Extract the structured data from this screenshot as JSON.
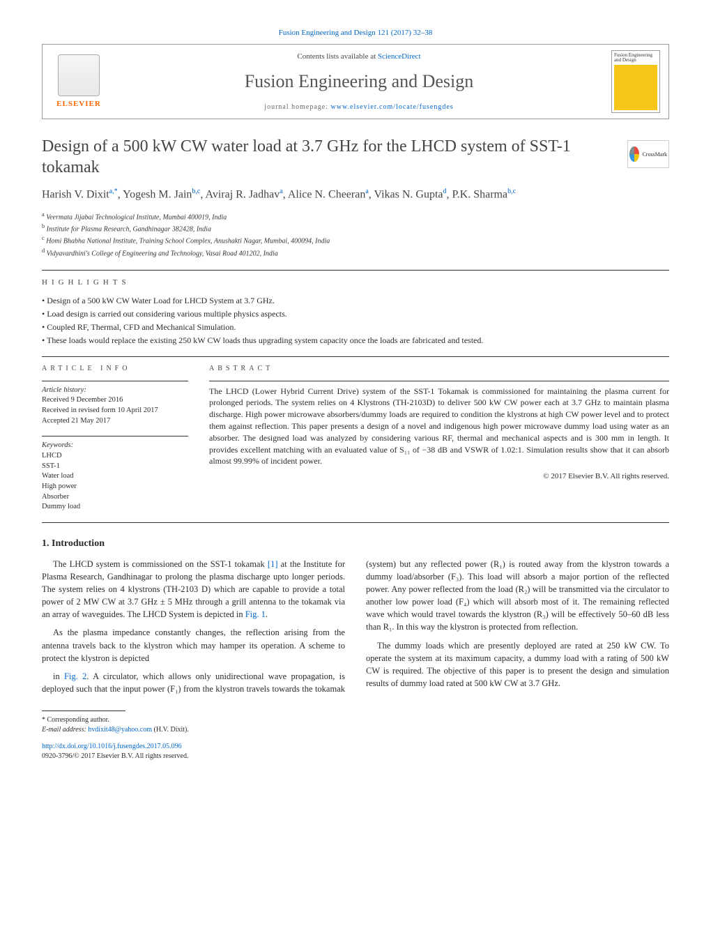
{
  "journal_header": {
    "top_link_prefix": "Fusion Engineering and Design 121 (2017) 32–38",
    "contents_text": "Contents lists available at ",
    "contents_link": "ScienceDirect",
    "journal_name": "Fusion Engineering and Design",
    "homepage_prefix": "journal homepage: ",
    "homepage_link": "www.elsevier.com/locate/fusengdes",
    "publisher": "ELSEVIER",
    "cover_title": "Fusion Engineering and Design"
  },
  "crossmark_label": "CrossMark",
  "article": {
    "title": "Design of a 500 kW CW water load at 3.7 GHz for the LHCD system of SST-1 tokamak",
    "authors_html": "Harish V. Dixit<sup>a,*</sup>, Yogesh M. Jain<sup>b,c</sup>, Aviraj R. Jadhav<sup>a</sup>, Alice N. Cheeran<sup>a</sup>, Vikas N. Gupta<sup>d</sup>, P.K. Sharma<sup>b,c</sup>",
    "affiliations": [
      {
        "tag": "a",
        "text": "Veermata Jijabai Technological Institute, Mumbai 400019, India"
      },
      {
        "tag": "b",
        "text": "Institute for Plasma Research, Gandhinagar 382428, India"
      },
      {
        "tag": "c",
        "text": "Homi Bhabha National Institute, Training School Complex, Anushakti Nagar, Mumbai, 400094, India"
      },
      {
        "tag": "d",
        "text": "Vidyavardhini's College of Engineering and Technology, Vasai Road 401202, India"
      }
    ]
  },
  "highlights": {
    "label": "HIGHLIGHTS",
    "items": [
      "Design of a 500 kW CW Water Load for LHCD System at 3.7 GHz.",
      "Load design is carried out considering various multiple physics aspects.",
      "Coupled RF, Thermal, CFD and Mechanical Simulation.",
      "These loads would replace the existing 250 kW CW loads thus upgrading system capacity once the loads are fabricated and tested."
    ]
  },
  "article_info": {
    "label": "ARTICLE INFO",
    "history_header": "Article history:",
    "history": [
      "Received 9 December 2016",
      "Received in revised form 10 April 2017",
      "Accepted 21 May 2017"
    ],
    "keywords_header": "Keywords:",
    "keywords": [
      "LHCD",
      "SST-1",
      "Water load",
      "High power",
      "Absorber",
      "Dummy load"
    ]
  },
  "abstract": {
    "label": "ABSTRACT",
    "text": "The LHCD (Lower Hybrid Current Drive) system of the SST-1 Tokamak is commissioned for maintaining the plasma current for prolonged periods. The system relies on 4 Klystrons (TH-2103D) to deliver 500 kW CW power each at 3.7 GHz to maintain plasma discharge. High power microwave absorbers/dummy loads are required to condition the klystrons at high CW power level and to protect them against reflection. This paper presents a design of a novel and indigenous high power microwave dummy load using water as an absorber. The designed load was analyzed by considering various RF, thermal and mechanical aspects and is 300 mm in length. It provides excellent matching with an evaluated value of S₁₁ of −38 dB and VSWR of 1.02:1. Simulation results show that it can absorb almost 99.99% of incident power.",
    "copyright": "© 2017 Elsevier B.V. All rights reserved."
  },
  "body": {
    "section_number": "1.",
    "section_title": "Introduction",
    "p1": "The LHCD system is commissioned on the SST-1 tokamak [1] at the Institute for Plasma Research, Gandhinagar to prolong the plasma discharge upto longer periods. The system relies on 4 klystrons (TH-2103 D) which are capable to provide a total power of 2 MW CW at 3.7 GHz ± 5 MHz through a grill antenna to the tokamak via an array of waveguides. The LHCD System is depicted in Fig. 1.",
    "p2": "As the plasma impedance constantly changes, the reflection arising from the antenna travels back to the klystron which may hamper its operation. A scheme to protect the klystron is depicted",
    "p3": "in Fig. 2. A circulator, which allows only unidirectional wave propagation, is deployed such that the input power (F₁) from the klystron travels towards the tokamak (system) but any reflected power (R₁) is routed away from the klystron towards a dummy load/absorber (F₃). This load will absorb a major portion of the reflected power. Any power reflected from the load (R₂) will be transmitted via the circulator to another low power load (F₄) which will absorb most of it. The remaining reflected wave which would travel towards the klystron (R₃) will be effectively 50–60 dB less than R₁. In this way the klystron is protected from reflection.",
    "p4": "The dummy loads which are presently deployed are rated at 250 kW CW. To operate the system at its maximum capacity, a dummy load with a rating of 500 kW CW is required. The objective of this paper is to present the design and simulation results of dummy load rated at 500 kW CW at 3.7 GHz.",
    "ref1": "[1]",
    "fig1": "Fig. 1",
    "fig2": "Fig. 2"
  },
  "footer": {
    "corresponding": "* Corresponding author.",
    "email_label": "E-mail address: ",
    "email": "hvdixit48@yahoo.com",
    "email_suffix": " (H.V. Dixit).",
    "doi": "http://dx.doi.org/10.1016/j.fusengdes.2017.05.096",
    "issn_line": "0920-3796/© 2017 Elsevier B.V. All rights reserved."
  },
  "colors": {
    "link": "#0066cc",
    "elsevier_orange": "#ff6600",
    "cover_yellow": "#f5c518",
    "text": "#2a2a2a",
    "heading_gray": "#444444",
    "rule": "#333333"
  }
}
